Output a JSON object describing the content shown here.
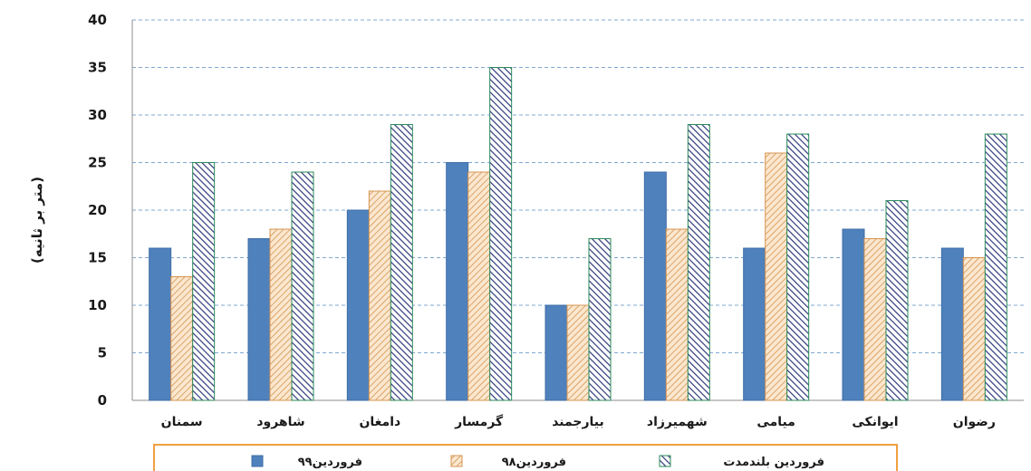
{
  "chart_data": {
    "type": "bar",
    "title": "",
    "xlabel": "",
    "ylabel": "(متر بر ثانیه)",
    "ylim": [
      0,
      40
    ],
    "yticks": [
      0,
      5,
      10,
      15,
      20,
      25,
      30,
      35,
      40
    ],
    "grid": true,
    "legend_position": "bottom",
    "categories": [
      "رضوان",
      "ایوانکی",
      "میامی",
      "شهمیرزاد",
      "بیارجمند",
      "گرمسار",
      "دامغان",
      "شاهرود",
      "سمنان"
    ],
    "series": [
      {
        "name": "فروردین۹۹",
        "values": [
          16,
          18,
          16,
          24,
          10,
          25,
          20,
          17,
          16
        ],
        "color": "#4f81bd",
        "style": "solid"
      },
      {
        "name": "فروردین۹۸",
        "values": [
          15,
          17,
          26,
          18,
          10,
          24,
          22,
          18,
          13
        ],
        "color": "#e0a060",
        "style": "hatch-diagonal"
      },
      {
        "name": "فروردین بلندمدت",
        "values": [
          28,
          21,
          28,
          29,
          17,
          35,
          29,
          24,
          25
        ],
        "color": "#2e3a7a",
        "border": "#2a8a5a",
        "style": "hatch-dense"
      }
    ]
  }
}
